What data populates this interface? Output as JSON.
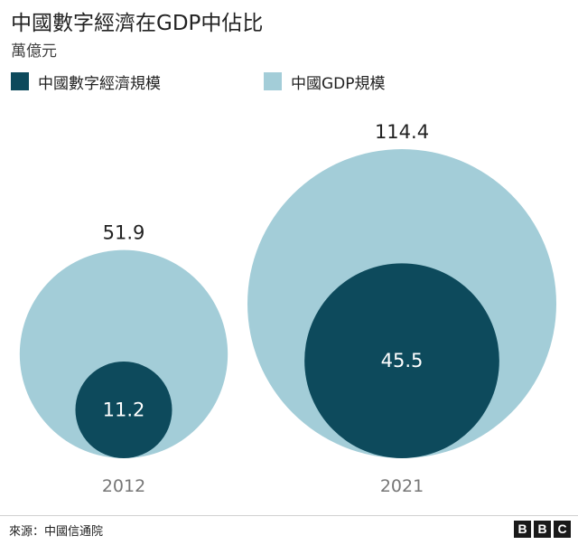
{
  "title": "中國數字經濟在GDP中佔比",
  "subtitle": "萬億元",
  "legend": [
    {
      "label": "中國數字經濟規模",
      "color": "#0d4a5c"
    },
    {
      "label": "中國GDP規模",
      "color": "#a3cdd8"
    }
  ],
  "source": "來源：中國信通院",
  "logo": [
    "B",
    "B",
    "C"
  ],
  "chart_data": {
    "type": "bubble",
    "categories": [
      "2012",
      "2021"
    ],
    "series": [
      {
        "name": "中國GDP規模",
        "values": [
          51.9,
          114.4
        ],
        "color": "#a3cdd8"
      },
      {
        "name": "中國數字經濟規模",
        "values": [
          11.2,
          45.5
        ],
        "color": "#0d4a5c"
      }
    ]
  }
}
